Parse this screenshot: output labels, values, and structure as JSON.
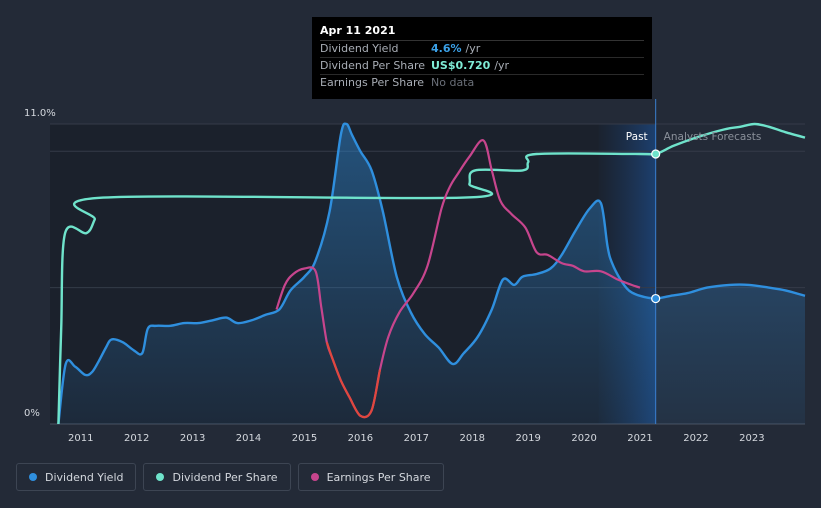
{
  "tooltip": {
    "date": "Apr 11 2021",
    "rows": [
      {
        "label": "Dividend Yield",
        "value": "4.6%",
        "unit": "/yr"
      },
      {
        "label": "Dividend Per Share",
        "value": "US$0.720",
        "unit": "/yr"
      },
      {
        "label": "Earnings Per Share",
        "value": "No data",
        "unit": ""
      }
    ]
  },
  "legend": [
    {
      "label": "Dividend Yield",
      "color": "#2f8fde"
    },
    {
      "label": "Dividend Per Share",
      "color": "#6fe3cb"
    },
    {
      "label": "Earnings Per Share",
      "color": "#c7458d"
    }
  ],
  "chart_data": {
    "type": "line",
    "y_top_label": "11.0%",
    "y_bottom_label": "0%",
    "ylim": [
      0,
      11
    ],
    "xlim": [
      2010.45,
      2023.95
    ],
    "x_ticks": [
      "2011",
      "2012",
      "2013",
      "2014",
      "2015",
      "2016",
      "2017",
      "2018",
      "2019",
      "2020",
      "2021",
      "2022",
      "2023"
    ],
    "past_label": "Past",
    "forecast_label": "Analysts Forecasts",
    "forecast_start": 2021.28,
    "hover_x": 2021.28,
    "series": [
      {
        "name": "Dividend Yield",
        "color": "#2f8fde",
        "fill": true,
        "x": [
          2010.6,
          2010.73,
          2010.9,
          2011.08,
          2011.2,
          2011.32,
          2011.45,
          2011.55,
          2011.75,
          2011.95,
          2012.1,
          2012.2,
          2012.35,
          2012.6,
          2012.85,
          2013.1,
          2013.35,
          2013.6,
          2013.8,
          2014.05,
          2014.3,
          2014.55,
          2014.75,
          2015.0,
          2015.2,
          2015.45,
          2015.65,
          2015.75,
          2015.85,
          2016.0,
          2016.2,
          2016.4,
          2016.65,
          2016.9,
          2017.15,
          2017.4,
          2017.65,
          2017.85,
          2018.1,
          2018.35,
          2018.55,
          2018.75,
          2018.9,
          2019.15,
          2019.4,
          2019.6,
          2019.85,
          2020.1,
          2020.3,
          2020.42,
          2020.5,
          2020.65,
          2020.8,
          2021.0,
          2021.28,
          2021.55,
          2021.85,
          2022.2,
          2022.6,
          2022.95,
          2023.3,
          2023.6,
          2023.95
        ],
        "y": [
          0.0,
          2.2,
          2.1,
          1.8,
          1.9,
          2.3,
          2.8,
          3.1,
          3.0,
          2.7,
          2.6,
          3.5,
          3.6,
          3.6,
          3.7,
          3.7,
          3.8,
          3.9,
          3.7,
          3.8,
          4.0,
          4.2,
          4.9,
          5.4,
          6.0,
          7.8,
          10.6,
          11.0,
          10.6,
          10.0,
          9.3,
          7.8,
          5.4,
          4.1,
          3.3,
          2.8,
          2.2,
          2.6,
          3.2,
          4.2,
          5.3,
          5.1,
          5.4,
          5.5,
          5.7,
          6.2,
          7.1,
          7.9,
          8.1,
          6.5,
          5.9,
          5.3,
          4.9,
          4.7,
          4.6,
          4.7,
          4.8,
          5.0,
          5.1,
          5.1,
          5.0,
          4.9,
          4.7
        ]
      },
      {
        "name": "Dividend Per Share",
        "color": "#6fe3cb",
        "fill": false,
        "x": [
          2010.6,
          2010.65,
          2010.72,
          2011.1,
          2011.25,
          2011.4,
          2017.85,
          2017.95,
          2018.05,
          2018.9,
          2019.0,
          2019.15,
          2021.0,
          2021.28,
          2021.6,
          2022.0,
          2022.5,
          2022.8,
          2023.05,
          2023.3,
          2023.6,
          2023.95
        ],
        "y": [
          0.0,
          3.5,
          7.0,
          7.0,
          7.5,
          8.3,
          8.3,
          8.8,
          9.3,
          9.3,
          9.6,
          9.9,
          9.9,
          9.9,
          10.2,
          10.5,
          10.8,
          10.9,
          11.0,
          10.9,
          10.7,
          10.5
        ]
      },
      {
        "name": "Earnings Per Share",
        "color": "#c7458d",
        "fill": false,
        "x": [
          2014.5,
          2014.65,
          2014.8,
          2015.0,
          2015.2,
          2015.3,
          2015.4,
          2015.5,
          2015.65,
          2015.8,
          2016.0,
          2016.2,
          2016.35,
          2016.5,
          2016.7,
          2016.95,
          2017.2,
          2017.45,
          2017.6,
          2017.75,
          2017.95,
          2018.2,
          2018.35,
          2018.5,
          2018.7,
          2018.95,
          2019.15,
          2019.35,
          2019.6,
          2019.8,
          2020.0,
          2020.3,
          2020.6,
          2020.85,
          2021.0
        ],
        "y": [
          4.2,
          5.1,
          5.5,
          5.7,
          5.6,
          4.3,
          3.0,
          2.4,
          1.6,
          1.0,
          0.3,
          0.5,
          2.0,
          3.2,
          4.1,
          4.8,
          5.8,
          7.9,
          8.7,
          9.2,
          9.8,
          10.4,
          9.3,
          8.2,
          7.7,
          7.2,
          6.3,
          6.2,
          5.9,
          5.8,
          5.6,
          5.6,
          5.3,
          5.1,
          5.0
        ]
      }
    ]
  }
}
